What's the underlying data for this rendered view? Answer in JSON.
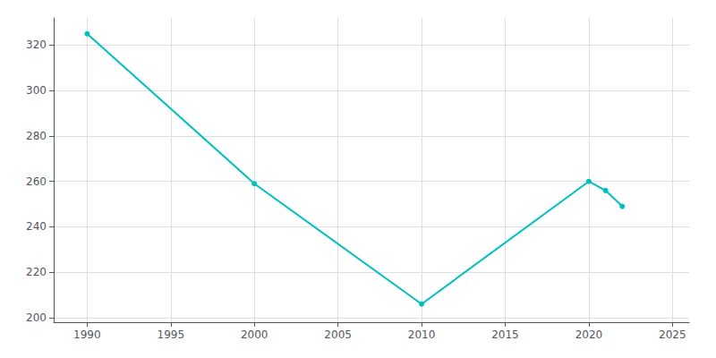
{
  "chart_data": {
    "type": "line",
    "x": [
      1990,
      2000,
      2010,
      2020,
      2021,
      2022
    ],
    "values": [
      325,
      259,
      206,
      260,
      256,
      249
    ],
    "color": "#00BFBF",
    "marker": "circle",
    "xlim": [
      1988,
      2026
    ],
    "ylim": [
      198,
      332
    ],
    "xticks": [
      1990,
      1995,
      2000,
      2005,
      2010,
      2015,
      2020,
      2025
    ],
    "yticks": [
      200,
      220,
      240,
      260,
      280,
      300,
      320
    ],
    "grid": true
  }
}
